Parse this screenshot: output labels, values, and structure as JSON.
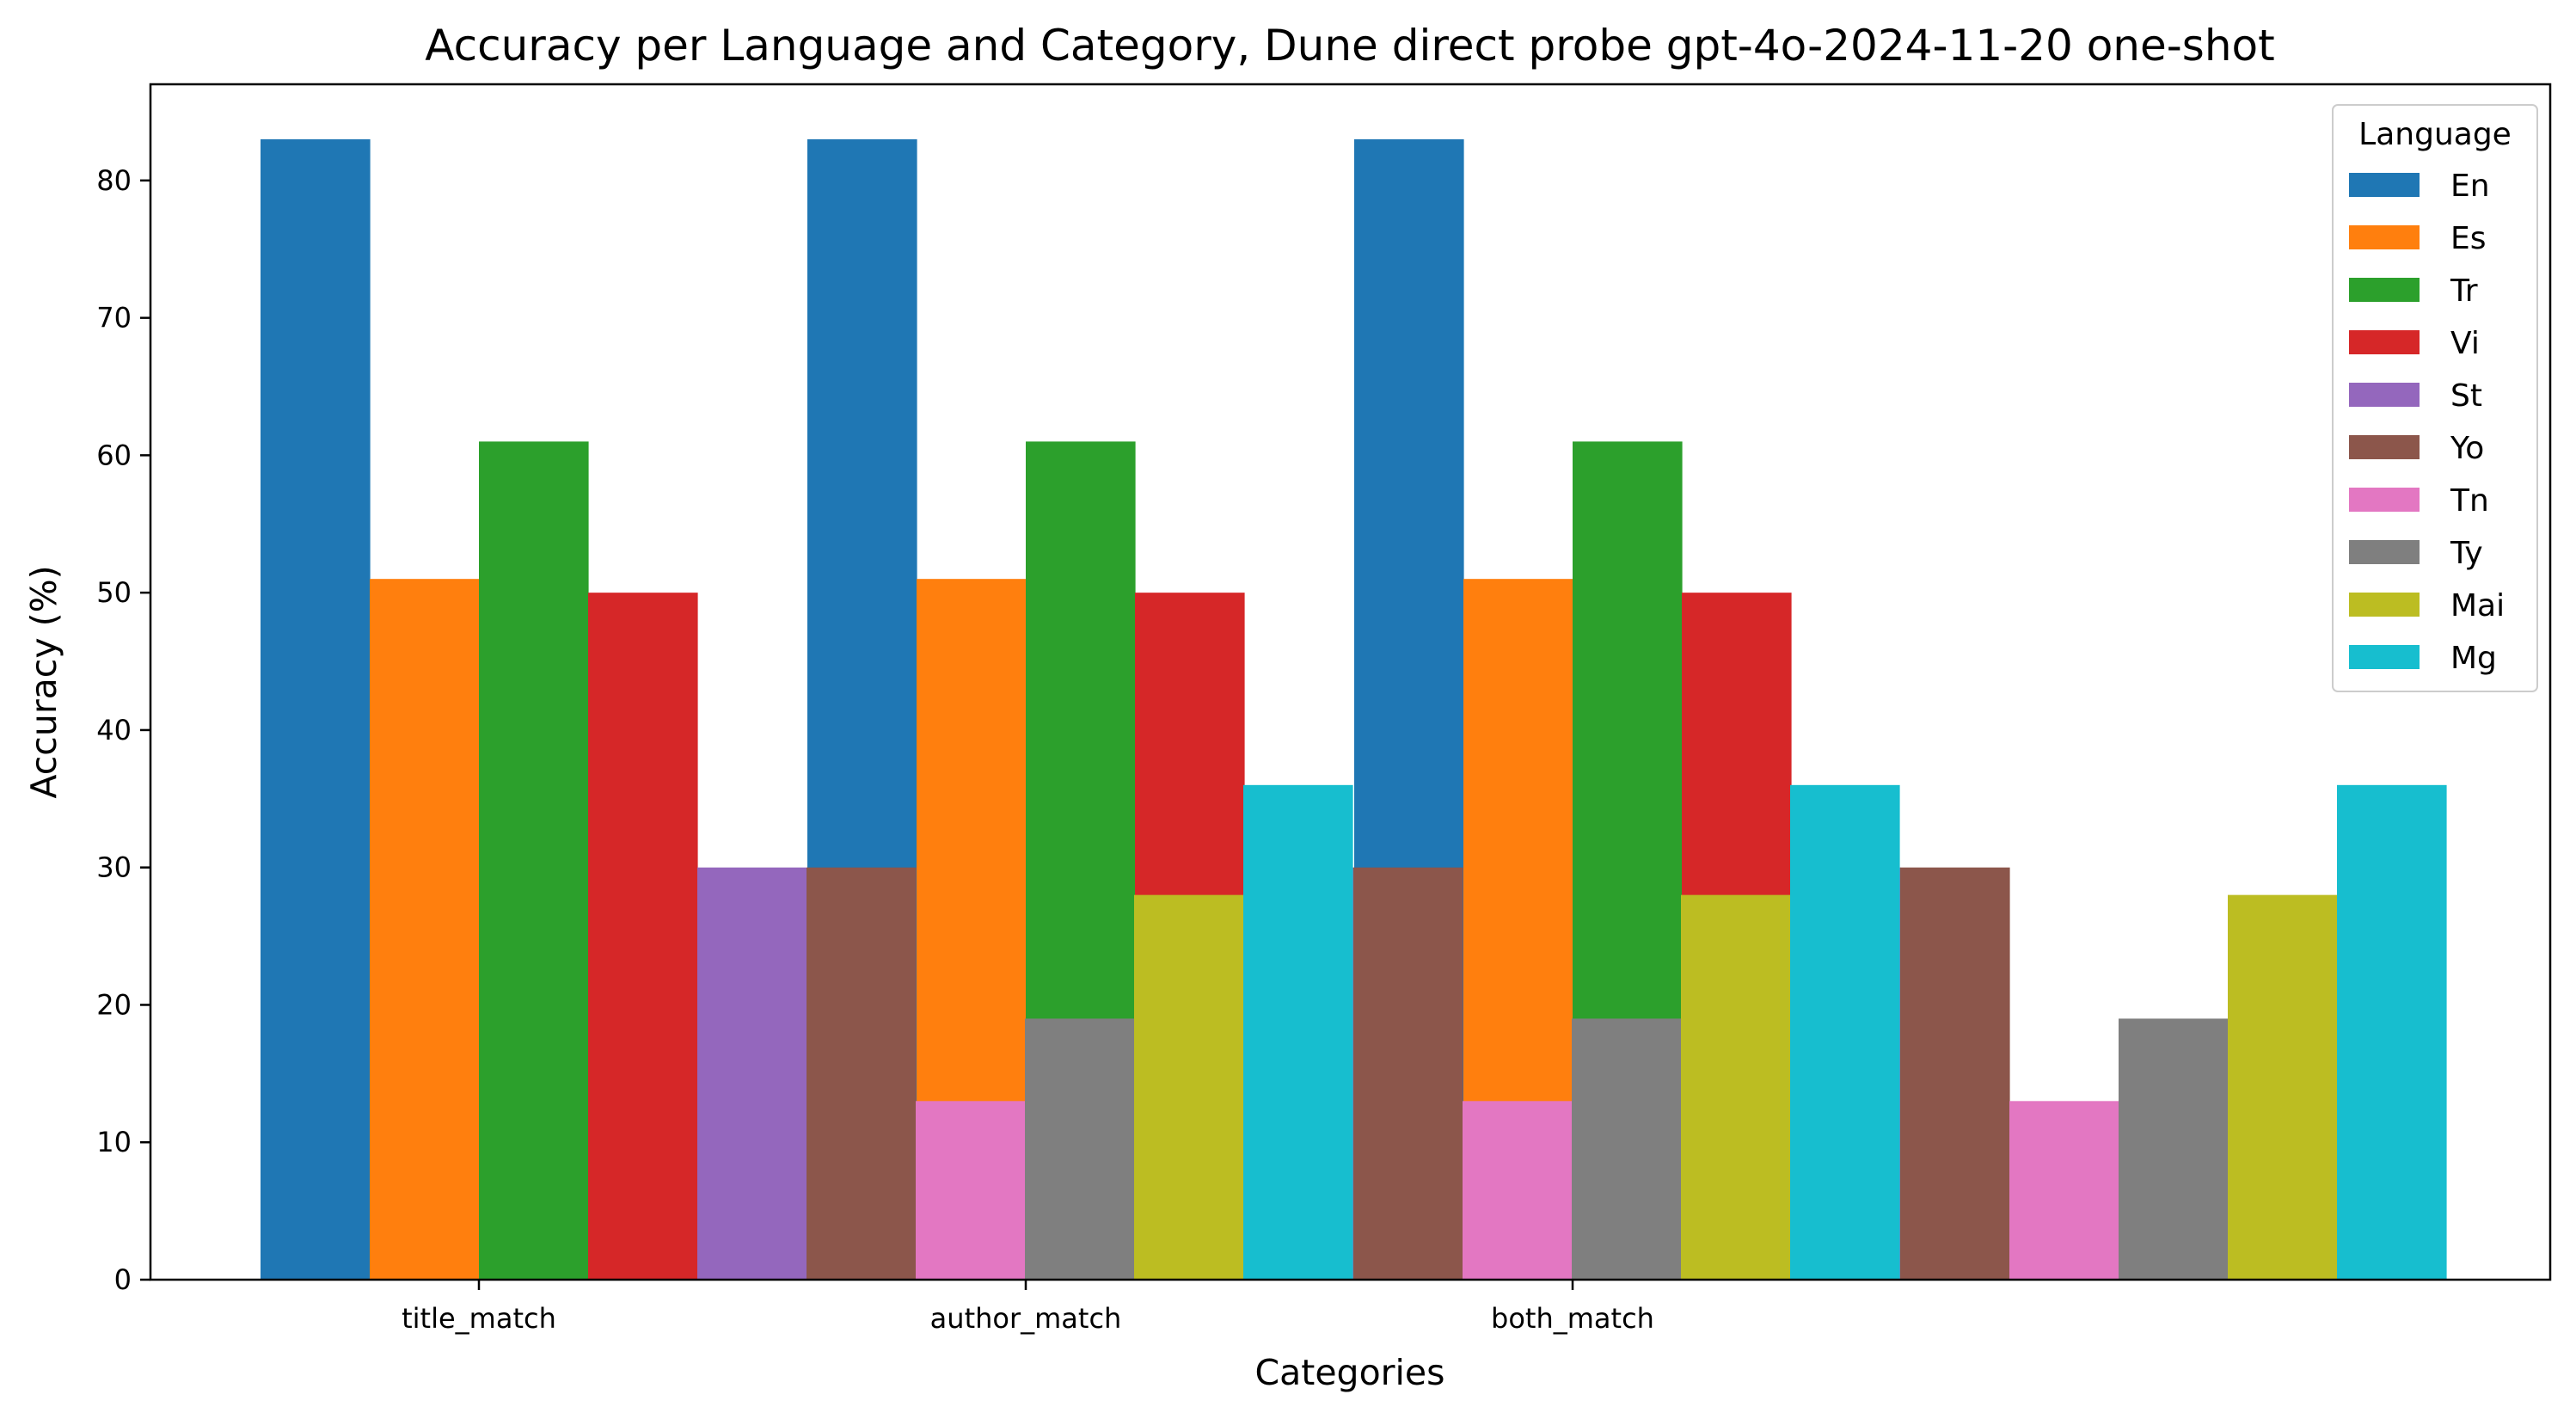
{
  "chart_data": {
    "type": "bar",
    "title": "Accuracy per Language and Category, Dune direct probe gpt-4o-2024-11-20 one-shot",
    "xlabel": "Categories",
    "ylabel": "Accuracy (%)",
    "categories": [
      "title_match",
      "author_match",
      "both_match"
    ],
    "ylim": [
      0,
      87
    ],
    "yticks": [
      0,
      10,
      20,
      30,
      40,
      50,
      60,
      70,
      80
    ],
    "grid": false,
    "legend": {
      "title": "Language",
      "placement": "top-right"
    },
    "series": [
      {
        "name": "En",
        "color": "#1f77b4",
        "values": [
          83,
          83,
          83
        ]
      },
      {
        "name": "Es",
        "color": "#ff7f0e",
        "values": [
          51,
          51,
          51
        ]
      },
      {
        "name": "Tr",
        "color": "#2ca02c",
        "values": [
          61,
          61,
          61
        ]
      },
      {
        "name": "Vi",
        "color": "#d62728",
        "values": [
          50,
          50,
          50
        ]
      },
      {
        "name": "St",
        "color": "#9467bd",
        "values": [
          30,
          30,
          30
        ]
      },
      {
        "name": "Yo",
        "color": "#8c564b",
        "values": [
          30,
          30,
          30
        ]
      },
      {
        "name": "Tn",
        "color": "#e377c2",
        "values": [
          13,
          13,
          13
        ]
      },
      {
        "name": "Ty",
        "color": "#7f7f7f",
        "values": [
          19,
          19,
          19
        ]
      },
      {
        "name": "Mai",
        "color": "#bcbd22",
        "values": [
          28,
          28,
          28
        ]
      },
      {
        "name": "Mg",
        "color": "#17becf",
        "values": [
          36,
          36,
          36
        ]
      }
    ]
  }
}
